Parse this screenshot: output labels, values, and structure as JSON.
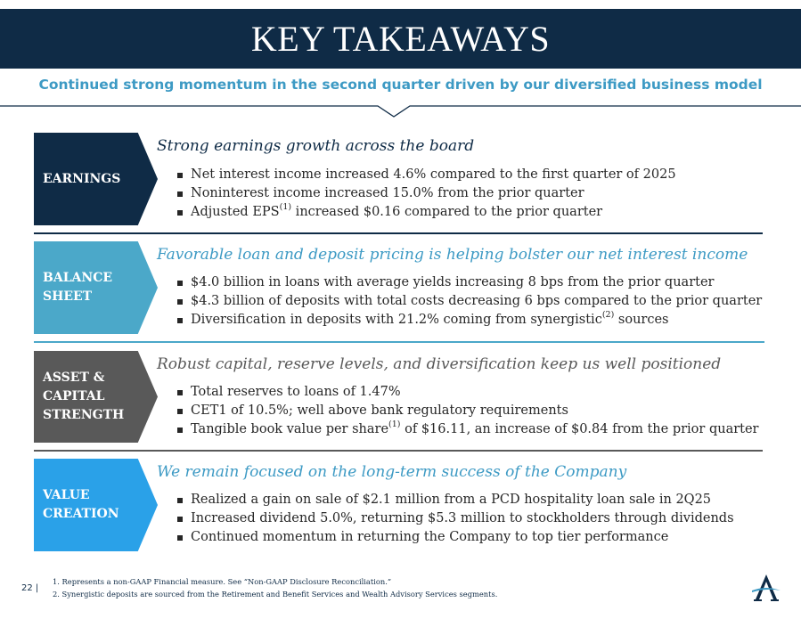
{
  "header": {
    "title": "KEY TAKEAWAYS",
    "subtitle": "Continued strong momentum in the second quarter driven by our diversified business model"
  },
  "colors": {
    "navy": "#0f2b46",
    "teal_light": "#4ba8c9",
    "gray_dark": "#595959",
    "blue_bright": "#2aa1e8",
    "heading_navy": "#0f2b46",
    "heading_teal": "#3d9ac4"
  },
  "sections": [
    {
      "label": "EARNINGS",
      "heading": "Strong earnings growth across the board",
      "bullets": [
        {
          "pre": "Net interest income increased 4.6% compared to the first quarter of 2025",
          "sup": "",
          "post": ""
        },
        {
          "pre": "Noninterest income increased 15.0% from the prior quarter",
          "sup": "",
          "post": ""
        },
        {
          "pre": "Adjusted EPS",
          "sup": "(1)",
          "post": " increased $0.16 compared to the prior quarter"
        }
      ]
    },
    {
      "label": "BALANCE\nSHEET",
      "heading": "Favorable loan and deposit pricing is helping bolster our net interest income",
      "bullets": [
        {
          "pre": "$4.0 billion in loans with average yields increasing 8 bps from the prior quarter",
          "sup": "",
          "post": ""
        },
        {
          "pre": "$4.3 billion of deposits with total costs decreasing 6 bps compared to the prior quarter",
          "sup": "",
          "post": ""
        },
        {
          "pre": "Diversification in deposits with 21.2% coming from synergistic",
          "sup": "(2)",
          "post": " sources"
        }
      ]
    },
    {
      "label": "ASSET &\nCAPITAL\nSTRENGTH",
      "heading": "Robust capital, reserve levels, and diversification keep us well positioned",
      "bullets": [
        {
          "pre": "Total reserves to loans of 1.47%",
          "sup": "",
          "post": ""
        },
        {
          "pre": "CET1 of 10.5%; well above bank regulatory requirements",
          "sup": "",
          "post": ""
        },
        {
          "pre": "Tangible book value per share",
          "sup": "(1)",
          "post": " of $16.11, an increase of $0.84 from the prior quarter"
        }
      ]
    },
    {
      "label": "VALUE\nCREATION",
      "heading": "We remain focused on the long-term success of the Company",
      "bullets": [
        {
          "pre": "Realized a gain on sale of $2.1 million from a PCD hospitality loan sale in 2Q25",
          "sup": "",
          "post": ""
        },
        {
          "pre": "Increased dividend 5.0%, returning $5.3 million to stockholders through dividends",
          "sup": "",
          "post": ""
        },
        {
          "pre": "Continued momentum in returning the Company to top tier performance",
          "sup": "",
          "post": ""
        }
      ]
    }
  ],
  "footer": {
    "page_number": "22 |",
    "footnotes": [
      "1. Represents a non-GAAP Financial measure. See “Non-GAAP Disclosure Reconciliation.”",
      "2. Synergistic deposits are sourced from the Retirement and Benefit Services and Wealth Advisory Services segments."
    ],
    "logo_icon": "company-a-logo-icon"
  }
}
